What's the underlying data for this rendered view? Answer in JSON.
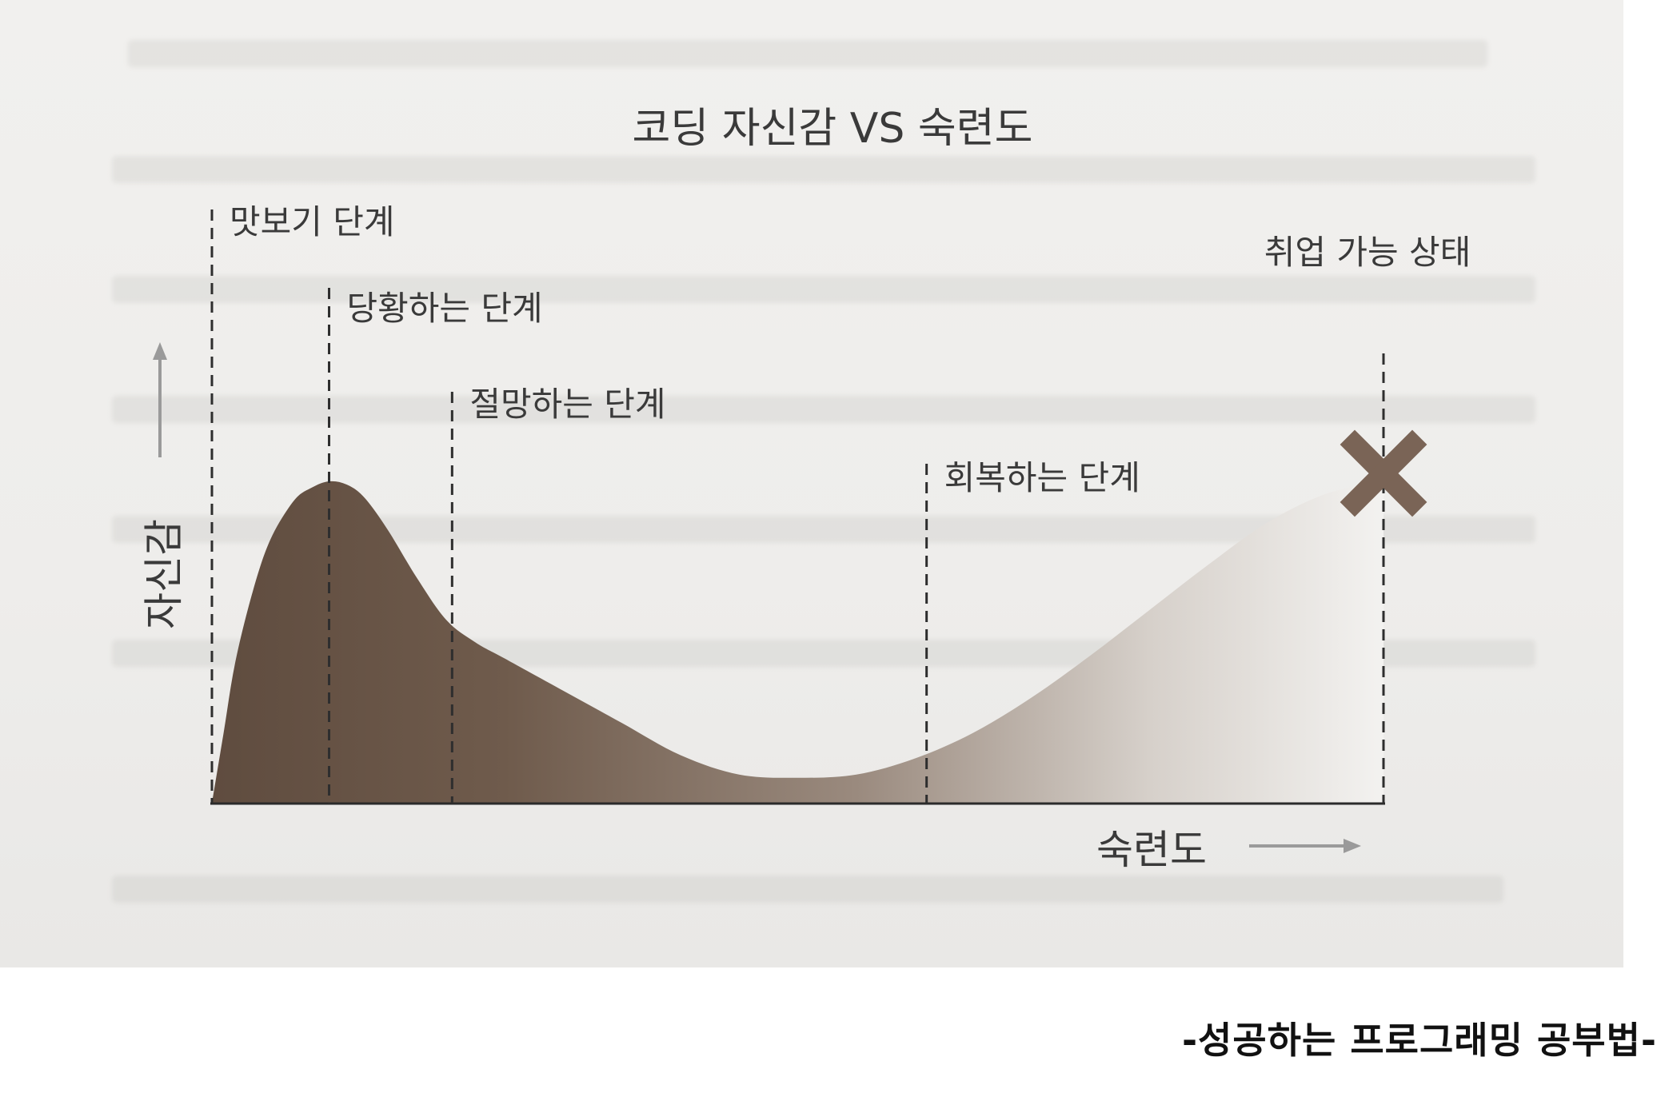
{
  "chart_data": {
    "type": "area",
    "title": "코딩 자신감 VS 숙련도",
    "xlabel": "숙련도",
    "ylabel": "자신감",
    "xlim": [
      0,
      100
    ],
    "ylim": [
      0,
      100
    ],
    "grid": false,
    "series": [
      {
        "x": [
          0,
          1,
          2,
          3.5,
          5,
          7,
          8.5,
          10,
          11.5,
          13,
          15,
          17.5,
          20,
          22.5,
          25,
          30,
          35,
          40,
          45,
          50,
          55,
          60,
          65,
          70,
          75,
          80,
          85,
          90,
          95,
          100
        ],
        "values": [
          0,
          22,
          44,
          66,
          82,
          94,
          98,
          100,
          99,
          95,
          85,
          70,
          57,
          50,
          45,
          35,
          25,
          15,
          9,
          8,
          9,
          14,
          22,
          33,
          46,
          60,
          74,
          87,
          96,
          100
        ]
      }
    ],
    "annotations": [
      {
        "label": "맛보기 단계",
        "x": 0
      },
      {
        "label": "당황하는 단계",
        "x": 10
      },
      {
        "label": "절망하는 단계",
        "x": 20.5
      },
      {
        "label": "회복하는 단계",
        "x": 61
      },
      {
        "label": "취업 가능 상태",
        "x": 100
      }
    ],
    "colors": {
      "fill_dark": "#6a5748",
      "fill_light": "#f0efed",
      "marker": "#7a6456",
      "text": "#3a3a3a"
    }
  },
  "caption": "-성공하는 프로그래밍 공부법-"
}
